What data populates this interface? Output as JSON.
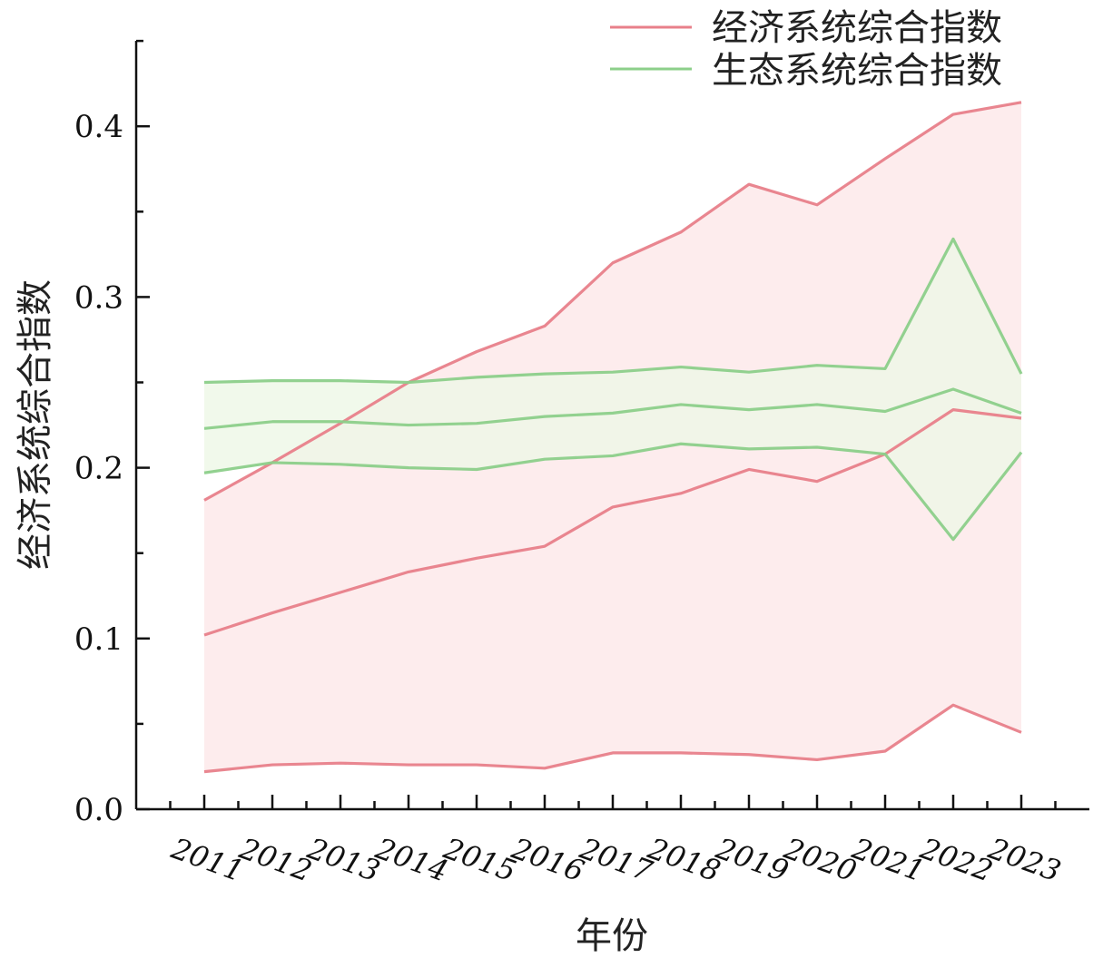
{
  "chart_data": {
    "type": "line",
    "title": "",
    "xlabel": "年份",
    "ylabel": "经济系统综合指数",
    "x": [
      "2011",
      "2012",
      "2013",
      "2014",
      "2015",
      "2016",
      "2017",
      "2018",
      "2019",
      "2020",
      "2021",
      "2022",
      "2023"
    ],
    "ylim": [
      0,
      0.45
    ],
    "yticks": [
      "0.0",
      "0.1",
      "0.2",
      "0.3",
      "0.4"
    ],
    "grid": false,
    "legend_position": "top-right",
    "series": [
      {
        "name": "经济系统综合指数",
        "color": "#e8808a",
        "fill": "#fde9ea",
        "max": [
          0.181,
          0.203,
          0.226,
          0.25,
          0.268,
          0.283,
          0.32,
          0.338,
          0.366,
          0.354,
          0.381,
          0.407,
          0.414
        ],
        "mean": [
          0.102,
          0.115,
          0.127,
          0.139,
          0.147,
          0.154,
          0.177,
          0.185,
          0.199,
          0.192,
          0.208,
          0.234,
          0.229
        ],
        "min": [
          0.022,
          0.026,
          0.027,
          0.026,
          0.026,
          0.024,
          0.033,
          0.033,
          0.032,
          0.029,
          0.034,
          0.061,
          0.045
        ]
      },
      {
        "name": "生态系统综合指数",
        "color": "#8ccf8a",
        "fill": "#eef7e6",
        "max": [
          0.25,
          0.251,
          0.251,
          0.25,
          0.253,
          0.255,
          0.256,
          0.259,
          0.256,
          0.26,
          0.258,
          0.334,
          0.255
        ],
        "mean": [
          0.223,
          0.227,
          0.227,
          0.225,
          0.226,
          0.23,
          0.232,
          0.237,
          0.234,
          0.237,
          0.233,
          0.246,
          0.232
        ],
        "min": [
          0.197,
          0.203,
          0.202,
          0.2,
          0.199,
          0.205,
          0.207,
          0.214,
          0.211,
          0.212,
          0.208,
          0.158,
          0.209
        ]
      }
    ]
  }
}
